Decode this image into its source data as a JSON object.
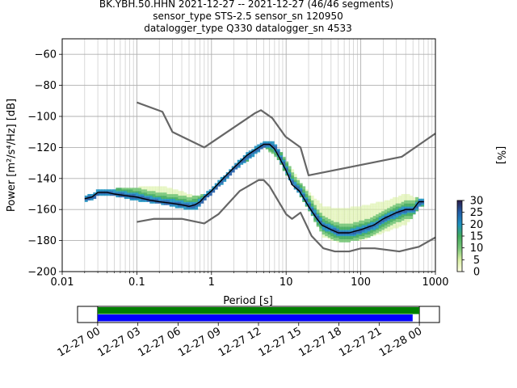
{
  "chart_data": [
    {
      "type": "heatmap",
      "title_lines": [
        "BK.YBH.50.HHN   2021-12-27 -- 2021-12-27  (46/46 segments)",
        "sensor_type STS-2.5 sensor_sn 120950",
        "datalogger_type Q330 datalogger_sn 4533"
      ],
      "xlabel": "Period [s]",
      "ylabel": "Power [m²/s⁴/Hz] [dB]",
      "xscale": "log",
      "xlim": [
        0.01,
        1000
      ],
      "ylim": [
        -200,
        -50
      ],
      "x_ticks": [
        0.01,
        0.1,
        1,
        10,
        100,
        1000
      ],
      "x_tick_labels": [
        "0.01",
        "0.1",
        "1",
        "10",
        "100",
        "1000"
      ],
      "y_ticks": [
        -200,
        -180,
        -160,
        -140,
        -120,
        -100,
        -80,
        -60
      ],
      "y_tick_labels": [
        "−200",
        "−180",
        "−160",
        "−140",
        "−120",
        "−100",
        "−80",
        "−60"
      ],
      "grid": true,
      "colorbar": {
        "label": "[%]",
        "ticks": [
          0,
          5,
          10,
          15,
          20,
          25,
          30
        ],
        "tick_labels": [
          "0",
          "5",
          "10",
          "15",
          "20",
          "25",
          "30"
        ],
        "range": [
          0,
          30
        ],
        "colormap": [
          "#ffffe5",
          "#d9f0a3",
          "#78c679",
          "#41ab5d",
          "#1d91c0",
          "#225ea8",
          "#2c1e4a"
        ]
      },
      "noise_model_high": [
        [
          0.1,
          -91
        ],
        [
          0.22,
          -97
        ],
        [
          0.3,
          -110
        ],
        [
          0.8,
          -120
        ],
        [
          3.8,
          -98
        ],
        [
          4.6,
          -96
        ],
        [
          6.5,
          -101
        ],
        [
          9.8,
          -113
        ],
        [
          15.6,
          -120
        ],
        [
          20,
          -138
        ],
        [
          354,
          -126
        ],
        [
          1000,
          -111
        ]
      ],
      "noise_model_low": [
        [
          0.1,
          -168
        ],
        [
          0.17,
          -166
        ],
        [
          0.4,
          -166
        ],
        [
          0.8,
          -169
        ],
        [
          1.24,
          -163
        ],
        [
          2.4,
          -148
        ],
        [
          4.3,
          -141
        ],
        [
          5,
          -141
        ],
        [
          6,
          -145
        ],
        [
          10,
          -163
        ],
        [
          12,
          -166
        ],
        [
          15.6,
          -162
        ],
        [
          21.9,
          -177
        ],
        [
          31.6,
          -185
        ],
        [
          45,
          -187
        ],
        [
          70,
          -187
        ],
        [
          101,
          -185
        ],
        [
          154,
          -185
        ],
        [
          328,
          -187
        ],
        [
          600,
          -184
        ],
        [
          1000,
          -178
        ]
      ],
      "mean_psd": [
        [
          0.02,
          -153
        ],
        [
          0.025,
          -152
        ],
        [
          0.03,
          -149
        ],
        [
          0.04,
          -149
        ],
        [
          0.05,
          -150
        ],
        [
          0.07,
          -151
        ],
        [
          0.1,
          -152
        ],
        [
          0.15,
          -154
        ],
        [
          0.2,
          -155
        ],
        [
          0.3,
          -156
        ],
        [
          0.4,
          -157
        ],
        [
          0.5,
          -158
        ],
        [
          0.6,
          -157
        ],
        [
          0.7,
          -155
        ],
        [
          0.8,
          -152
        ],
        [
          1,
          -148
        ],
        [
          1.5,
          -139
        ],
        [
          2,
          -133
        ],
        [
          3,
          -125
        ],
        [
          4,
          -121
        ],
        [
          5,
          -118
        ],
        [
          6,
          -118
        ],
        [
          7,
          -121
        ],
        [
          8,
          -126
        ],
        [
          10,
          -135
        ],
        [
          12,
          -144
        ],
        [
          15,
          -148
        ],
        [
          20,
          -158
        ],
        [
          25,
          -165
        ],
        [
          30,
          -170
        ],
        [
          40,
          -173
        ],
        [
          50,
          -175
        ],
        [
          70,
          -175
        ],
        [
          100,
          -173
        ],
        [
          150,
          -170
        ],
        [
          200,
          -166
        ],
        [
          300,
          -162
        ],
        [
          400,
          -160
        ],
        [
          500,
          -160
        ],
        [
          600,
          -155
        ],
        [
          700,
          -155
        ]
      ],
      "histogram_spread": [
        [
          0.02,
          -153,
          -153
        ],
        [
          0.03,
          -148,
          -150
        ],
        [
          0.05,
          -147,
          -152
        ],
        [
          0.1,
          -146,
          -155
        ],
        [
          0.2,
          -145,
          -157
        ],
        [
          0.4,
          -149,
          -160
        ],
        [
          0.6,
          -152,
          -160
        ],
        [
          0.8,
          -150,
          -154
        ],
        [
          1,
          -146,
          -150
        ],
        [
          2,
          -131,
          -135
        ],
        [
          5,
          -116,
          -120
        ],
        [
          8,
          -123,
          -130
        ],
        [
          10,
          -130,
          -140
        ],
        [
          15,
          -143,
          -152
        ],
        [
          20,
          -150,
          -162
        ],
        [
          30,
          -158,
          -178
        ],
        [
          50,
          -160,
          -182
        ],
        [
          100,
          -158,
          -180
        ],
        [
          200,
          -155,
          -175
        ],
        [
          400,
          -150,
          -170
        ],
        [
          600,
          -154,
          -158
        ],
        [
          700,
          -153,
          -158
        ]
      ]
    },
    {
      "type": "timeline",
      "x_tick_labels": [
        "12-27 00",
        "12-27 03",
        "12-27 06",
        "12-27 09",
        "12-27 12",
        "12-27 15",
        "12-27 18",
        "12-27 21",
        "12-28 00"
      ],
      "x_range_hours": [
        -1.5,
        25.5
      ],
      "coverage_hours": [
        0,
        24
      ],
      "bars": [
        {
          "color": "#008000",
          "start_h": 0,
          "end_h": 24
        },
        {
          "color": "#0000ff",
          "start_h": 0,
          "end_h": 23.5
        }
      ]
    }
  ]
}
